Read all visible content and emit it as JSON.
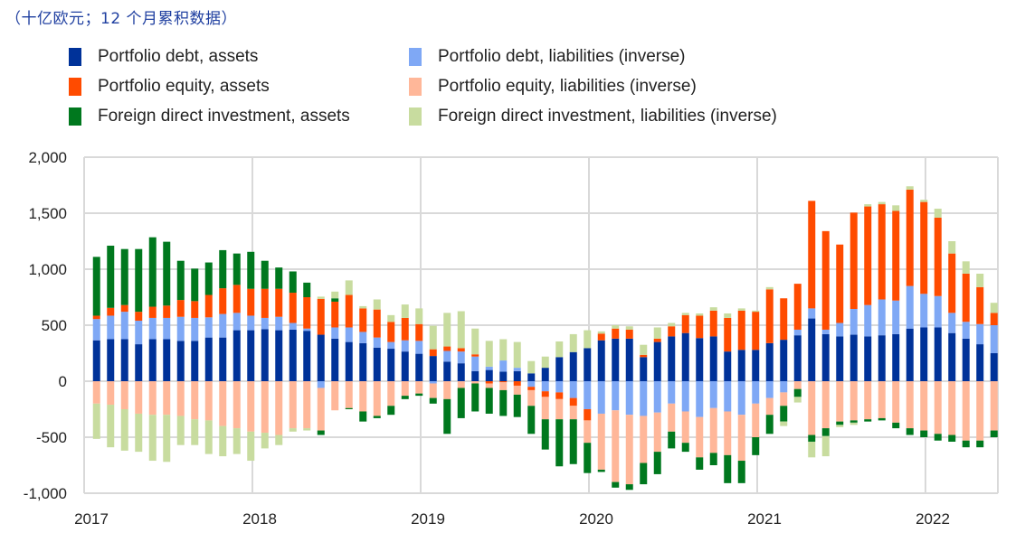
{
  "subtitle": "（十亿欧元；12 个月累积数据）",
  "chart_data": {
    "type": "bar",
    "stacked": true,
    "title": "",
    "subtitle": "（十亿欧元；12 个月累积数据）",
    "xlabel": "",
    "ylabel": "",
    "ylim": [
      -1000,
      2000
    ],
    "yticks": [
      2000,
      1500,
      1000,
      500,
      0,
      -500,
      -1000
    ],
    "ytick_labels": [
      "2,000",
      "1,500",
      "1,000",
      "500",
      "0",
      "-500",
      "-1,000"
    ],
    "xtick_labels": [
      "2017",
      "2018",
      "2019",
      "2020",
      "2021",
      "2022"
    ],
    "grid": true,
    "legend_position": "top",
    "frequency": "monthly",
    "start": "2017-01",
    "end": "2022-05",
    "series": [
      {
        "name": "Portfolio debt, assets",
        "color": "#003299",
        "values": [
          365,
          375,
          375,
          330,
          375,
          375,
          360,
          360,
          390,
          390,
          455,
          455,
          465,
          455,
          460,
          450,
          415,
          380,
          350,
          340,
          300,
          290,
          265,
          245,
          225,
          175,
          160,
          90,
          100,
          85,
          90,
          70,
          120,
          215,
          260,
          295,
          365,
          380,
          380,
          215,
          350,
          400,
          430,
          385,
          400,
          265,
          280,
          280,
          340,
          370,
          410,
          560,
          420,
          400,
          415,
          400,
          410,
          420,
          470,
          480,
          480,
          430,
          380,
          330,
          250
        ]
      },
      {
        "name": "Portfolio debt, liabilities (inverse)",
        "color": "#7fa8f5",
        "values": [
          190,
          210,
          245,
          210,
          190,
          190,
          215,
          205,
          180,
          210,
          155,
          130,
          100,
          120,
          60,
          20,
          -60,
          100,
          130,
          100,
          90,
          60,
          100,
          115,
          -20,
          95,
          105,
          130,
          30,
          100,
          30,
          -50,
          -90,
          -100,
          -150,
          -250,
          -290,
          -260,
          -300,
          -310,
          -280,
          -200,
          -270,
          -320,
          -240,
          -270,
          -300,
          -200,
          -150,
          -100,
          50,
          90,
          40,
          120,
          230,
          280,
          320,
          300,
          380,
          300,
          280,
          180,
          150,
          180,
          250
        ]
      },
      {
        "name": "Portfolio equity, assets",
        "color": "#ff4b00",
        "values": [
          30,
          70,
          60,
          80,
          100,
          110,
          150,
          150,
          200,
          230,
          250,
          240,
          260,
          250,
          270,
          280,
          320,
          230,
          290,
          210,
          250,
          180,
          200,
          150,
          60,
          40,
          30,
          20,
          -20,
          -10,
          -40,
          -30,
          -50,
          -60,
          -70,
          -100,
          60,
          90,
          80,
          20,
          30,
          90,
          160,
          200,
          230,
          300,
          350,
          340,
          480,
          370,
          410,
          960,
          880,
          700,
          860,
          880,
          850,
          800,
          860,
          820,
          700,
          530,
          430,
          330,
          110
        ]
      },
      {
        "name": "Portfolio equity, liabilities (inverse)",
        "color": "#ffb799",
        "values": [
          -200,
          -210,
          -250,
          -290,
          -300,
          -300,
          -310,
          -340,
          -350,
          -400,
          -420,
          -450,
          -460,
          -480,
          -420,
          -420,
          -380,
          -260,
          -240,
          -270,
          -310,
          -220,
          -130,
          -110,
          -130,
          -160,
          -60,
          -20,
          -40,
          -70,
          -80,
          -140,
          -200,
          -180,
          -120,
          -200,
          -500,
          -640,
          -620,
          -420,
          -350,
          -250,
          -280,
          -360,
          -400,
          -390,
          -410,
          -300,
          -150,
          -120,
          -70,
          -480,
          -420,
          -360,
          -350,
          -340,
          -330,
          -370,
          -420,
          -440,
          -470,
          -480,
          -530,
          -530,
          -440
        ]
      },
      {
        "name": "Foreign direct investment, assets",
        "color": "#00781e",
        "values": [
          525,
          555,
          500,
          560,
          620,
          570,
          350,
          290,
          290,
          340,
          280,
          330,
          250,
          190,
          190,
          130,
          -40,
          30,
          -10,
          -90,
          -20,
          -80,
          -30,
          -20,
          -50,
          -310,
          -270,
          -250,
          -230,
          -230,
          -200,
          -250,
          -270,
          -420,
          -400,
          -270,
          -20,
          -50,
          -50,
          -190,
          -200,
          -150,
          -80,
          -110,
          -110,
          -250,
          -200,
          -160,
          -170,
          -140,
          -70,
          -60,
          -70,
          -30,
          -20,
          -20,
          -20,
          -50,
          -60,
          -60,
          -60,
          -60,
          -60,
          -60,
          -60
        ]
      },
      {
        "name": "Foreign direct investment, liabilities (inverse)",
        "color": "#c8dc9f",
        "values": [
          -315,
          -380,
          -370,
          -340,
          -410,
          -420,
          -260,
          -230,
          -300,
          -270,
          -230,
          -260,
          -140,
          -90,
          -30,
          -20,
          20,
          60,
          130,
          20,
          90,
          60,
          120,
          140,
          210,
          300,
          330,
          230,
          230,
          190,
          230,
          110,
          100,
          140,
          160,
          160,
          20,
          30,
          30,
          90,
          100,
          30,
          20,
          20,
          30,
          40,
          20,
          10,
          20,
          -40,
          -50,
          -140,
          -180,
          -20,
          -20,
          20,
          20,
          50,
          30,
          20,
          80,
          110,
          110,
          120,
          90
        ]
      }
    ]
  }
}
